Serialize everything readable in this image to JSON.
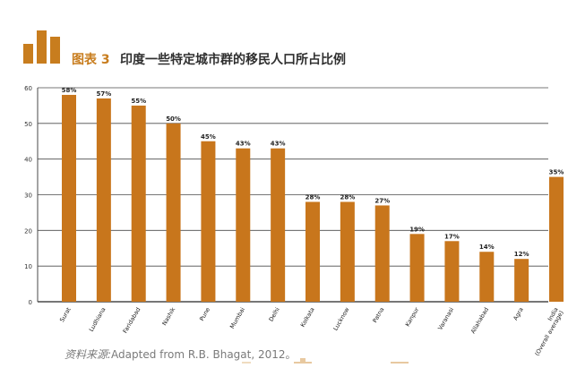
{
  "header": {
    "figure_label": "图表 3",
    "title": "印度一些特定城市群的移民人口所占比例"
  },
  "colors": {
    "bar": "#c8761c",
    "accent": "#c87d1e",
    "grid": "#4a4a4a"
  },
  "source": {
    "label": "资料来源:",
    "text": "Adapted from R.B. Bhagat, 2012。"
  },
  "chart_data": {
    "type": "bar",
    "categories": [
      "Surat",
      "Ludhiana",
      "Faridabad",
      "Nashik",
      "Pune",
      "Mumbai",
      "Delhi",
      "Kolkata",
      "Lucknow",
      "Patna",
      "Kanpur",
      "Varanasi",
      "Allahabad",
      "Agra",
      "India (Overall average)"
    ],
    "values": [
      58,
      57,
      55,
      50,
      45,
      43,
      43,
      28,
      28,
      27,
      19,
      17,
      14,
      12,
      35
    ],
    "data_labels": [
      "58%",
      "57%",
      "55%",
      "50%",
      "45%",
      "43%",
      "43%",
      "28%",
      "28%",
      "27%",
      "19%",
      "17%",
      "14%",
      "12%",
      "35%"
    ],
    "title": "",
    "xlabel": "",
    "ylabel": "",
    "ylim": [
      0,
      60
    ],
    "yticks": [
      "0",
      "10",
      "20",
      "30",
      "40",
      "50",
      "60"
    ],
    "grid": true,
    "legend": "none"
  }
}
